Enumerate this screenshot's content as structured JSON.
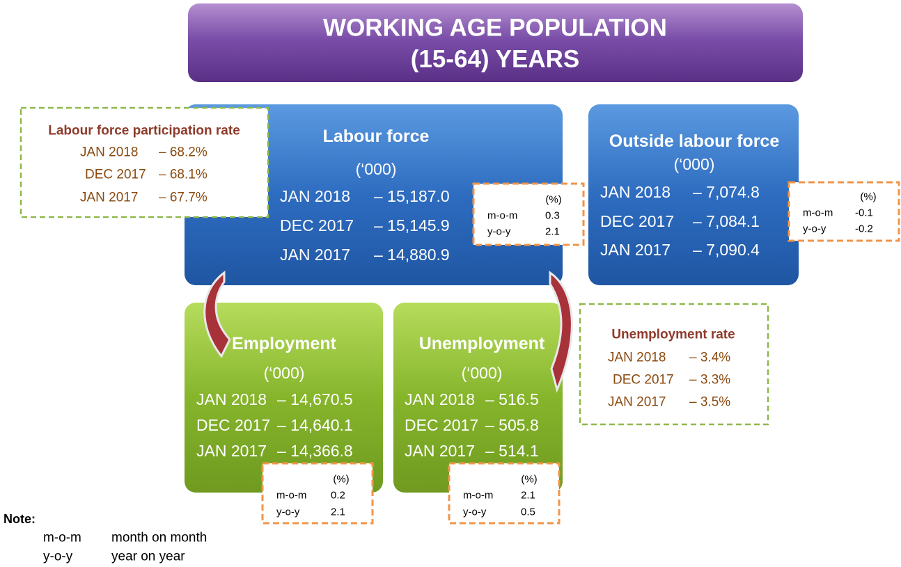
{
  "title": {
    "lines": [
      "WORKING AGE POPULATION",
      "(15-64) YEARS"
    ]
  },
  "labour_force": {
    "title": "Labour force",
    "unit": "(‘000)",
    "rows": [
      [
        "JAN 2018",
        "– 15,187.0"
      ],
      [
        "DEC 2017",
        "– 15,145.9"
      ],
      [
        "JAN 2017",
        "– 14,880.9"
      ]
    ],
    "change": {
      "unit": "(%)",
      "rows": [
        [
          "m-o-m",
          "0.3"
        ],
        [
          "y-o-y",
          "2.1"
        ]
      ]
    }
  },
  "outside_labour_force": {
    "title": "Outside labour force",
    "unit": "(‘000)",
    "rows": [
      [
        "JAN 2018",
        "– 7,074.8"
      ],
      [
        "DEC 2017",
        "– 7,084.1"
      ],
      [
        "JAN 2017",
        "– 7,090.4"
      ]
    ],
    "change": {
      "unit": "(%)",
      "rows": [
        [
          "m-o-m",
          "-0.1"
        ],
        [
          "y-o-y",
          "-0.2"
        ]
      ]
    }
  },
  "employment": {
    "title": "Employment",
    "unit": "(‘000)",
    "rows": [
      [
        "JAN 2018",
        "– 14,670.5"
      ],
      [
        "DEC 2017",
        "– 14,640.1"
      ],
      [
        "JAN 2017",
        "– 14,366.8"
      ]
    ],
    "change": {
      "unit": "(%)",
      "rows": [
        [
          "m-o-m",
          "0.2"
        ],
        [
          "y-o-y",
          "2.1"
        ]
      ]
    }
  },
  "unemployment": {
    "title": "Unemployment",
    "unit": "(‘000)",
    "rows": [
      [
        "JAN 2018",
        "– 516.5"
      ],
      [
        "DEC 2017",
        "– 505.8"
      ],
      [
        "JAN 2017",
        "– 514.1"
      ]
    ],
    "change": {
      "unit": "(%)",
      "rows": [
        [
          "m-o-m",
          "2.1"
        ],
        [
          "y-o-y",
          "0.5"
        ]
      ]
    }
  },
  "participation_rate": {
    "title": "Labour force participation rate",
    "rows": [
      [
        "JAN 2018",
        "– 68.2%"
      ],
      [
        "DEC 2017",
        "– 68.1%"
      ],
      [
        "JAN 2017",
        "– 67.7%"
      ]
    ]
  },
  "unemployment_rate": {
    "title": "Unemployment rate",
    "rows": [
      [
        "JAN 2018",
        "– 3.4%"
      ],
      [
        "DEC 2017",
        "– 3.3%"
      ],
      [
        "JAN 2017",
        "– 3.5%"
      ]
    ]
  },
  "note": {
    "title": "Note:",
    "rows": [
      [
        "m-o-m",
        "month on month"
      ],
      [
        "y-o-y",
        "year on year"
      ]
    ]
  }
}
